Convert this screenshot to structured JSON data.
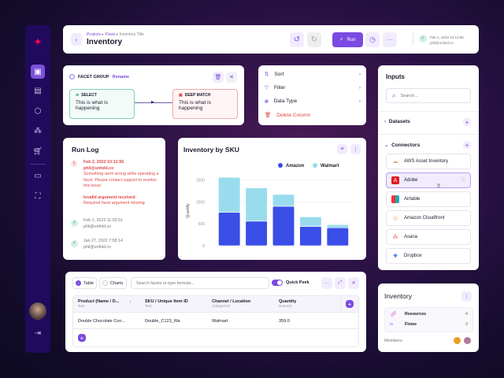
{
  "header": {
    "breadcrumb": [
      "Projects",
      "Flows",
      "Inventory Title"
    ],
    "title": "Inventory",
    "run_label": "Run",
    "status_time": "Feb 2, 2022 10:12:56",
    "status_user": "phil@unfold.co"
  },
  "facet": {
    "title": "FACET GROUP",
    "rename": "Rename",
    "node1": {
      "label": "SELECT",
      "text": "This is what is happening"
    },
    "node2": {
      "label": "DEEP MATCH",
      "text": "This is what is happening"
    }
  },
  "context_menu": {
    "items": [
      "Sort",
      "Filter",
      "Data Type"
    ],
    "delete": "Delete Column"
  },
  "run_log": {
    "title": "Run Log",
    "entries": [
      {
        "time": "Feb 2, 2022  10:12:56",
        "user": "phil@unfold.co",
        "message": "Something went wrong while operating a facet. Please contact support to resolve this issue.",
        "error_title": "Invalid argument received:",
        "error_detail": "Required facet argument missing",
        "status": "error"
      },
      {
        "time": "Feb 1, 2022  11:02:51",
        "user": "phil@unfold.co",
        "status": "success"
      },
      {
        "time": "Jan 27, 2022  7:58:14",
        "user": "phil@unfold.co",
        "status": "success"
      }
    ]
  },
  "chart_data": {
    "type": "bar",
    "stacked": true,
    "title": "Inventory by SKU",
    "ylabel": "Quantity",
    "ylim": [
      0,
      1600
    ],
    "yticks": [
      0,
      500,
      1000,
      1500
    ],
    "grid": true,
    "legend": "top-right",
    "categories": [
      "",
      "",
      "",
      "",
      ""
    ],
    "series": [
      {
        "name": "Amazon",
        "color": "#3a4ee8",
        "values": [
          760,
          560,
          900,
          440,
          410
        ]
      },
      {
        "name": "Walmart",
        "color": "#9adcee",
        "values": [
          800,
          760,
          270,
          220,
          70
        ]
      }
    ]
  },
  "inputs": {
    "title": "Inputs",
    "search_placeholder": "Search...",
    "datasets": "Datasets",
    "connectors": "Connectors",
    "items": [
      "AWS Asset Inventory",
      "Adobe",
      "Airtable",
      "Amazon Cloudfront",
      "Asana",
      "Dropbox"
    ]
  },
  "table_panel": {
    "tab_table": "Table",
    "tab_charts": "Charts",
    "search_placeholder": "Search facets or type formula...",
    "quick_peek": "Quick Peek",
    "quick_peek_on": true,
    "columns": [
      {
        "name": "Product (Name / D...",
        "type": "Text"
      },
      {
        "name": "SKU / Unique Item ID",
        "type": "Text"
      },
      {
        "name": "Channel / Location",
        "type": "Categorical"
      },
      {
        "name": "Quantity",
        "type": "Numeric"
      }
    ],
    "rows": [
      [
        "Double Chocolate Coo...",
        "Double_C123_Wa",
        "Walmart",
        "359.0"
      ]
    ]
  },
  "inventory_card": {
    "title": "Inventory",
    "resources_label": "Resources",
    "resources_count": "4",
    "flows_label": "Flows",
    "flows_count": "3",
    "members": "Members"
  }
}
